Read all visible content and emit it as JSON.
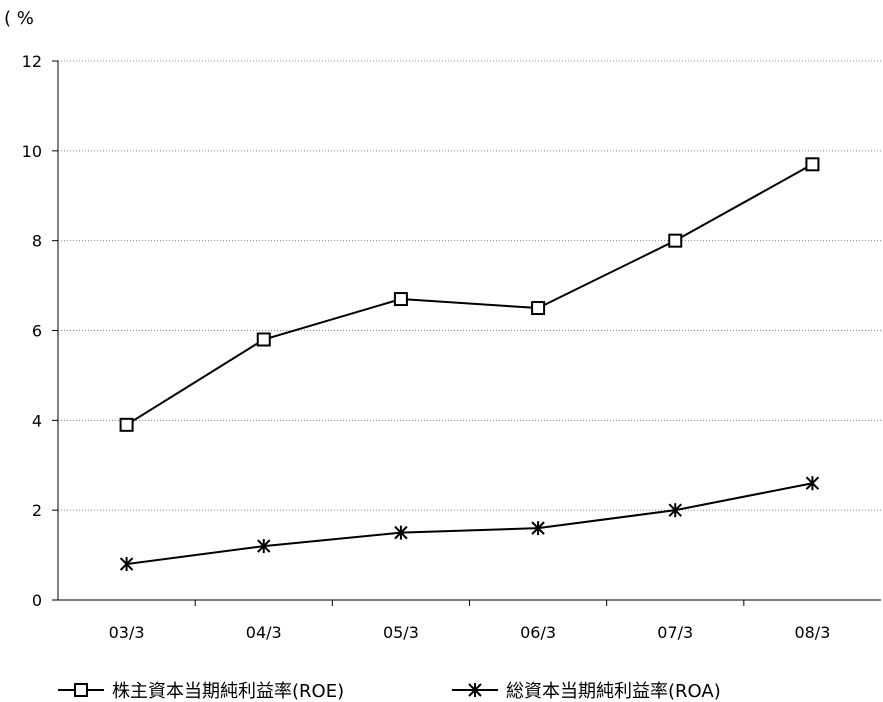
{
  "chart_data": {
    "type": "line",
    "unit_label": "( %",
    "categories": [
      "03/3",
      "04/3",
      "05/3",
      "06/3",
      "07/3",
      "08/3"
    ],
    "ylim": [
      0,
      12
    ],
    "yticks": [
      "0",
      "2",
      "4",
      "6",
      "8",
      "10",
      "12"
    ],
    "grid": "horizontal dotted",
    "legend_position": "bottom",
    "series": [
      {
        "name": "株主資本当期純利益率(ROE)",
        "marker": "square",
        "color": "#000000",
        "values": [
          3.9,
          5.8,
          6.7,
          6.5,
          8.0,
          9.7
        ]
      },
      {
        "name": "総資本当期純利益率(ROA)",
        "marker": "asterisk",
        "color": "#000000",
        "values": [
          0.8,
          1.2,
          1.5,
          1.6,
          2.0,
          2.6
        ]
      }
    ]
  }
}
